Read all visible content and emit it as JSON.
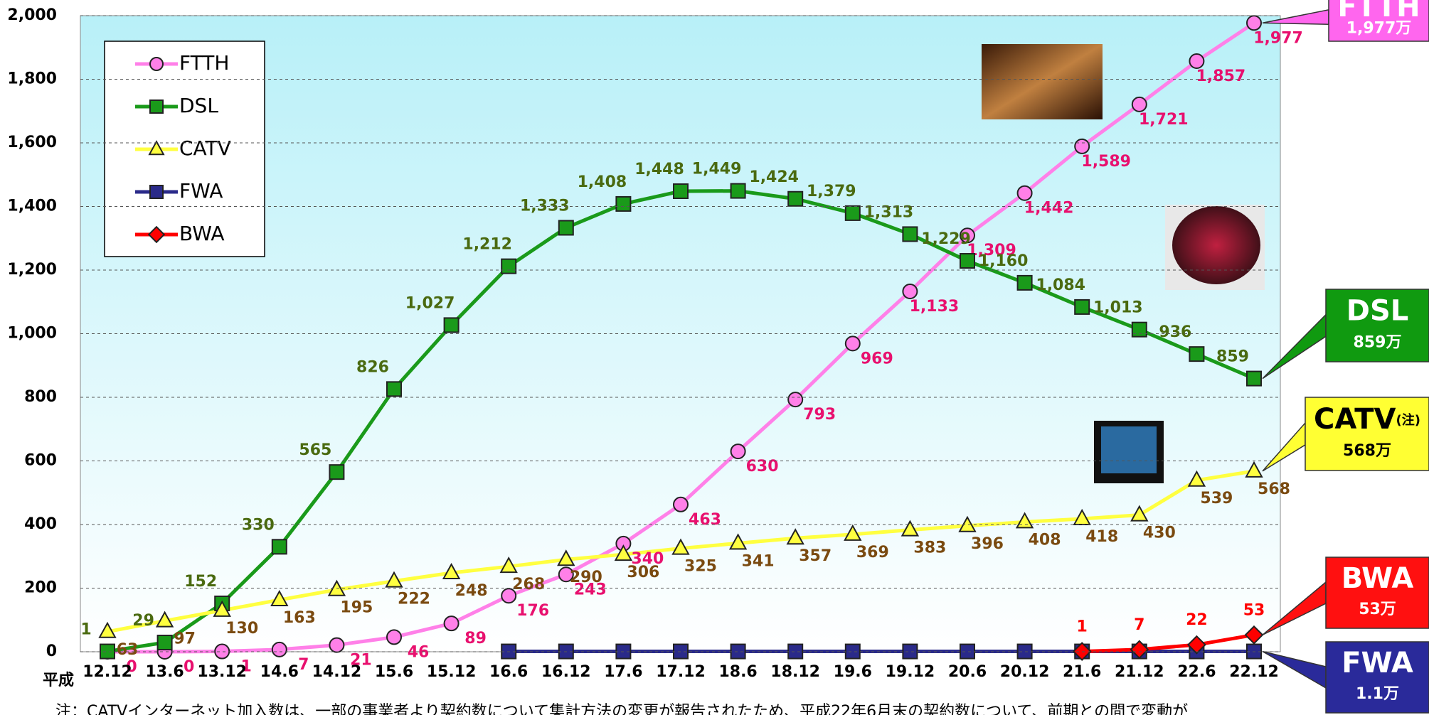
{
  "chart_data": {
    "type": "line",
    "x_prefix": "平成",
    "categories": [
      "12.12",
      "13.6",
      "13.12",
      "14.6",
      "14.12",
      "15.6",
      "15.12",
      "16.6",
      "16.12",
      "17.6",
      "17.12",
      "18.6",
      "18.12",
      "19.6",
      "19.12",
      "20.6",
      "20.12",
      "21.6",
      "21.12",
      "22.6",
      "22.12"
    ],
    "ylim": [
      0,
      2000
    ],
    "yticks": [
      0,
      200,
      400,
      600,
      800,
      {
        "value": 1000,
        "label": "1,000"
      },
      {
        "value": 1200,
        "label": "1,200"
      },
      {
        "value": 1400,
        "label": "1,400"
      },
      {
        "value": 1600,
        "label": "1,600"
      },
      {
        "value": 1800,
        "label": "1,800"
      },
      {
        "value": 2000,
        "label": "2,000"
      }
    ],
    "grid": true,
    "series": [
      {
        "name": "FTTH",
        "color": "#ff80e8",
        "marker": "circle",
        "label_color": "#e8106e",
        "values": [
          0,
          0,
          1,
          7,
          21,
          46,
          89,
          176,
          243,
          340,
          463,
          630,
          793,
          969,
          1133,
          1309,
          1442,
          1589,
          1721,
          1857,
          1977
        ],
        "value_labels": [
          "0",
          "0",
          "1",
          "7",
          "21",
          "46",
          "89",
          "176",
          "243",
          "340",
          "463",
          "630",
          "793",
          "969",
          "1,133",
          "1,309",
          "1,442",
          "1,589",
          "1,721",
          "1,857",
          "1,977"
        ]
      },
      {
        "name": "DSL",
        "color": "#1a9a1a",
        "marker": "square",
        "label_color": "#4a6a10",
        "values": [
          1,
          29,
          152,
          330,
          565,
          826,
          1027,
          1212,
          1333,
          1408,
          1448,
          1449,
          1424,
          1379,
          1313,
          1229,
          1160,
          1084,
          1013,
          936,
          859
        ],
        "value_labels": [
          "1",
          "29",
          "152",
          "330",
          "565",
          "826",
          "1,027",
          "1,212",
          "1,333",
          "1,408",
          "1,448",
          "1,449",
          "1,424",
          "1,379",
          "1,313",
          "1,229",
          "1,160",
          "1,084",
          "1,013",
          "936",
          "859"
        ]
      },
      {
        "name": "CATV",
        "color": "#ffff40",
        "marker": "triangle",
        "label_color": "#7a4a10",
        "values": [
          63,
          97,
          130,
          163,
          195,
          222,
          248,
          268,
          290,
          306,
          325,
          341,
          357,
          369,
          383,
          396,
          408,
          418,
          430,
          539,
          568
        ],
        "value_labels": [
          "63",
          "97",
          "130",
          "163",
          "195",
          "222",
          "248",
          "268",
          "290",
          "306",
          "325",
          "341",
          "357",
          "369",
          "383",
          "396",
          "408",
          "418",
          "430",
          "539",
          "568"
        ]
      },
      {
        "name": "FWA",
        "color": "#2a2a8a",
        "marker": "square",
        "values": [
          null,
          null,
          null,
          null,
          null,
          null,
          null,
          1,
          1,
          1,
          1,
          1,
          1,
          1,
          1,
          1,
          1,
          1,
          1,
          1,
          1
        ]
      },
      {
        "name": "BWA",
        "color": "#ff0000",
        "marker": "diamond",
        "label_color": "#ff0000",
        "values": [
          null,
          null,
          null,
          null,
          null,
          null,
          null,
          null,
          null,
          null,
          null,
          null,
          null,
          null,
          null,
          null,
          null,
          1,
          7,
          22,
          53
        ],
        "value_labels": [
          null,
          null,
          null,
          null,
          null,
          null,
          null,
          null,
          null,
          null,
          null,
          null,
          null,
          null,
          null,
          null,
          null,
          "1",
          "7",
          "22",
          "53"
        ]
      }
    ],
    "callouts": [
      {
        "label": "FTTH",
        "value_label": "1,977万",
        "color": "#ff66ee",
        "text_color": "#ffffff"
      },
      {
        "label": "DSL",
        "value_label": "859万",
        "color": "#109a10",
        "text_color": "#ffffff"
      },
      {
        "label": "CATV",
        "note": "(注)",
        "value_label": "568万",
        "color": "#ffff33",
        "text_color": "#000000"
      },
      {
        "label": "BWA",
        "value_label": "53万",
        "color": "#ff1010",
        "text_color": "#ffffff"
      },
      {
        "label": "FWA",
        "value_label": "1.1万",
        "color": "#2a2a9a",
        "text_color": "#ffffff"
      }
    ],
    "footnote": "注：CATVインターネット加入数は、一部の事業者より契約数について集計方法の変更が報告されたため、平成22年6月末の契約数について、前期との間で変動が"
  }
}
